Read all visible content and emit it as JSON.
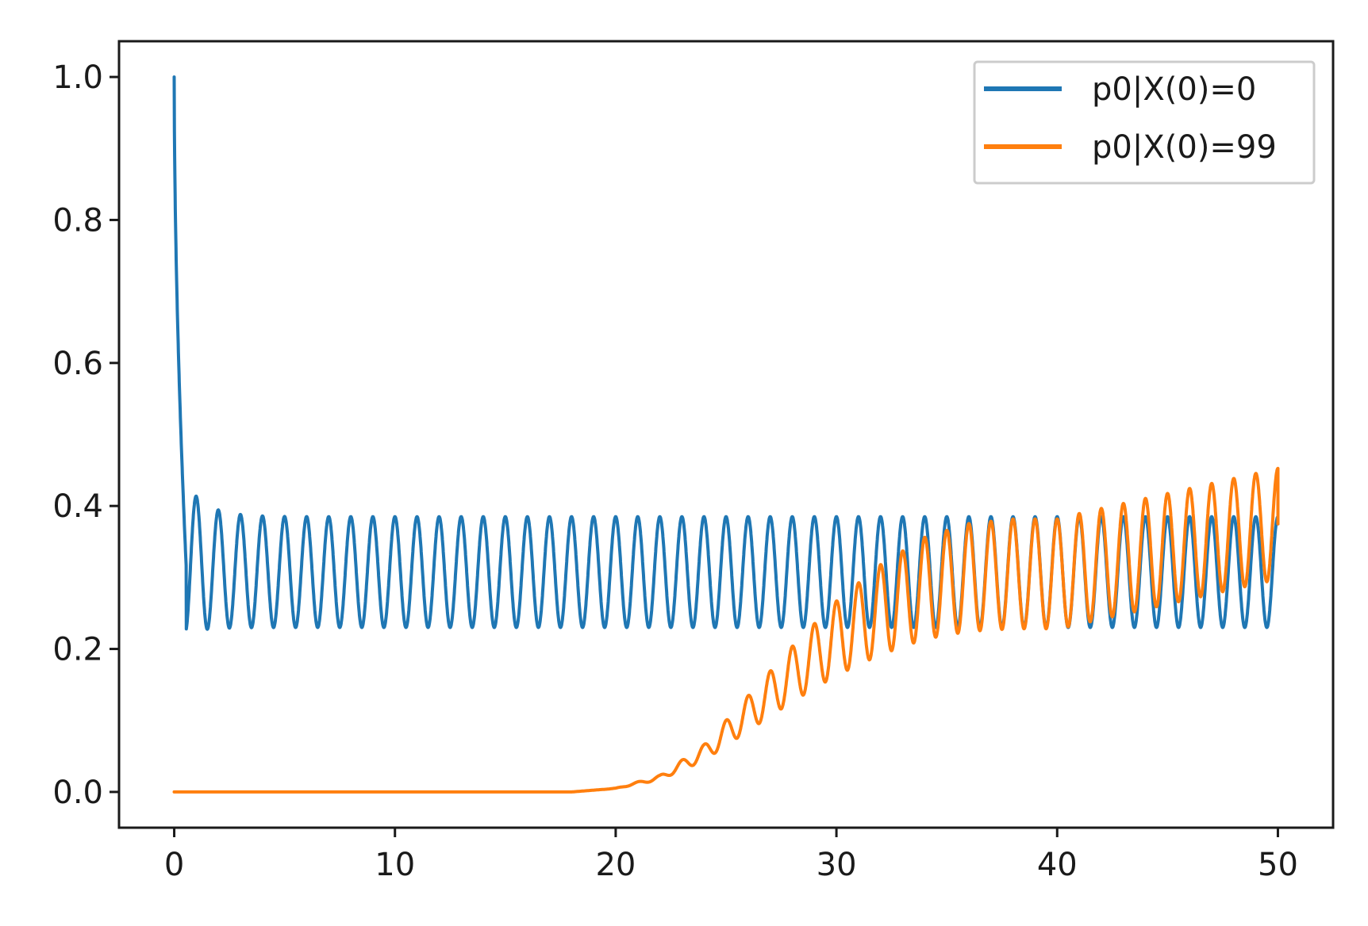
{
  "chart_data": {
    "type": "line",
    "title": "",
    "xlabel": "",
    "ylabel": "",
    "xlim": [
      -2.5,
      52.5
    ],
    "ylim": [
      -0.05,
      1.05
    ],
    "xticks": [
      0,
      10,
      20,
      30,
      40,
      50
    ],
    "yticks": [
      0.0,
      0.2,
      0.4,
      0.6,
      0.8,
      1.0
    ],
    "xtick_labels": [
      "0",
      "10",
      "20",
      "30",
      "40",
      "50"
    ],
    "ytick_labels": [
      "0.0",
      "0.2",
      "0.4",
      "0.6",
      "0.8",
      "1.0"
    ],
    "grid": false,
    "legend_position": "top-right",
    "series": [
      {
        "name": "p0|X(0)=0",
        "color": "#1f77b4",
        "initial_value": 1.0,
        "oscillation_period": 1.0,
        "steady_min": 0.23,
        "steady_max": 0.385,
        "points": [
          [
            0.0,
            1.0
          ],
          [
            0.3,
            0.5
          ],
          [
            0.5,
            0.31
          ],
          [
            0.7,
            0.3
          ],
          [
            1.0,
            0.43
          ],
          [
            1.5,
            0.24
          ],
          [
            2.0,
            0.395
          ],
          [
            2.5,
            0.235
          ],
          [
            3.0,
            0.39
          ],
          [
            3.5,
            0.23
          ],
          [
            4.0,
            0.385
          ],
          [
            50.0,
            0.375
          ]
        ]
      },
      {
        "name": "p0|X(0)=99",
        "color": "#ff7f0e",
        "initial_value": 0.0,
        "oscillation_period": 1.0,
        "steady_min": 0.23,
        "steady_max": 0.385,
        "points": [
          [
            0.0,
            0.0
          ],
          [
            18.0,
            0.0
          ],
          [
            20.0,
            0.005
          ],
          [
            22.0,
            0.02
          ],
          [
            24.0,
            0.055
          ],
          [
            26.0,
            0.11
          ],
          [
            28.0,
            0.165
          ],
          [
            30.0,
            0.215
          ],
          [
            32.0,
            0.255
          ],
          [
            34.0,
            0.285
          ],
          [
            36.0,
            0.3
          ],
          [
            38.0,
            0.305
          ],
          [
            40.0,
            0.305
          ],
          [
            50.0,
            0.375
          ]
        ]
      }
    ]
  }
}
